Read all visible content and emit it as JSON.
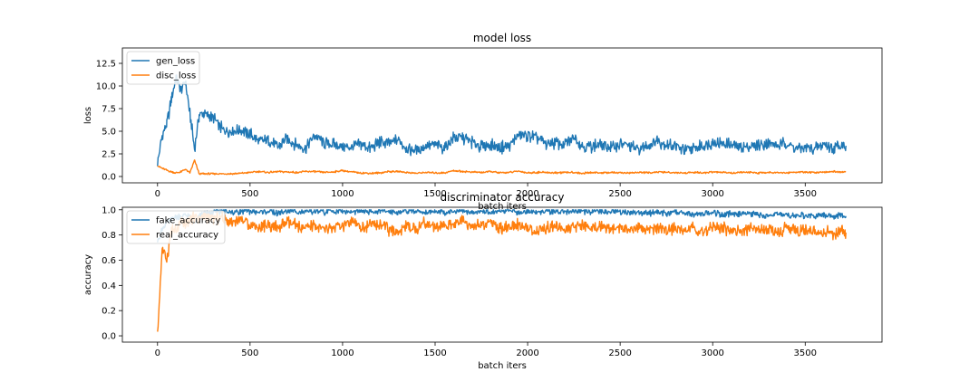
{
  "chart_data": [
    {
      "type": "line",
      "title": "model loss",
      "xlabel": "batch iters",
      "ylabel": "loss",
      "xlim": [
        -190,
        3915
      ],
      "ylim": [
        -0.7,
        14.2
      ],
      "xticks": [
        0,
        500,
        1000,
        1500,
        2000,
        2500,
        3000,
        3500
      ],
      "yticks": [
        0.0,
        2.5,
        5.0,
        7.5,
        10.0,
        12.5
      ],
      "xtick_labels": [
        "0",
        "500",
        "1000",
        "1500",
        "2000",
        "2500",
        "3000",
        "3500"
      ],
      "ytick_labels": [
        "0.0",
        "2.5",
        "5.0",
        "7.5",
        "10.0",
        "12.5"
      ],
      "grid": false,
      "legend_position": "top-left",
      "x": [
        0,
        25,
        50,
        75,
        100,
        125,
        150,
        175,
        200,
        225,
        250,
        300,
        350,
        400,
        450,
        500,
        550,
        600,
        650,
        700,
        750,
        800,
        850,
        900,
        950,
        1000,
        1050,
        1100,
        1150,
        1200,
        1250,
        1300,
        1350,
        1400,
        1450,
        1500,
        1550,
        1600,
        1650,
        1700,
        1750,
        1800,
        1850,
        1900,
        1950,
        2000,
        2050,
        2100,
        2150,
        2200,
        2250,
        2300,
        2350,
        2400,
        2450,
        2500,
        2550,
        2600,
        2650,
        2700,
        2750,
        2800,
        2850,
        2900,
        2950,
        3000,
        3050,
        3100,
        3150,
        3200,
        3250,
        3300,
        3350,
        3400,
        3450,
        3500,
        3550,
        3600,
        3650,
        3700,
        3720
      ],
      "series": [
        {
          "name": "gen_loss",
          "color": "#1f77b4",
          "values": [
            1.4,
            4.5,
            5.8,
            8.5,
            11.0,
            9.5,
            10.5,
            7.0,
            3.0,
            6.8,
            7.0,
            6.5,
            5.2,
            5.0,
            5.1,
            4.7,
            3.8,
            4.0,
            3.2,
            4.2,
            3.5,
            3.1,
            4.6,
            3.7,
            3.5,
            3.3,
            3.2,
            3.6,
            3.1,
            3.8,
            3.6,
            4.1,
            3.0,
            2.9,
            3.4,
            3.5,
            3.2,
            4.3,
            4.3,
            3.8,
            3.4,
            3.5,
            3.2,
            3.3,
            4.6,
            4.5,
            4.3,
            3.6,
            3.7,
            3.5,
            4.4,
            3.3,
            3.4,
            3.5,
            3.2,
            3.6,
            3.4,
            3.0,
            3.4,
            4.0,
            3.5,
            3.4,
            2.9,
            3.1,
            3.4,
            3.8,
            3.6,
            3.5,
            3.2,
            3.3,
            3.5,
            3.7,
            3.4,
            3.7,
            3.1,
            3.2,
            3.0,
            3.6,
            3.1,
            3.5,
            3.4
          ]
        },
        {
          "name": "disc_loss",
          "color": "#ff7f0e",
          "values": [
            1.2,
            0.9,
            0.7,
            0.5,
            0.4,
            0.5,
            0.8,
            0.4,
            1.8,
            0.3,
            0.3,
            0.3,
            0.3,
            0.3,
            0.35,
            0.45,
            0.55,
            0.45,
            0.55,
            0.5,
            0.45,
            0.55,
            0.55,
            0.45,
            0.5,
            0.65,
            0.5,
            0.4,
            0.35,
            0.4,
            0.55,
            0.55,
            0.45,
            0.35,
            0.45,
            0.4,
            0.4,
            0.65,
            0.55,
            0.5,
            0.45,
            0.55,
            0.4,
            0.45,
            0.6,
            0.4,
            0.45,
            0.45,
            0.4,
            0.45,
            0.45,
            0.35,
            0.45,
            0.4,
            0.45,
            0.4,
            0.4,
            0.45,
            0.4,
            0.5,
            0.45,
            0.4,
            0.4,
            0.45,
            0.4,
            0.5,
            0.45,
            0.4,
            0.45,
            0.45,
            0.4,
            0.45,
            0.45,
            0.4,
            0.5,
            0.45,
            0.45,
            0.5,
            0.55,
            0.5,
            0.55
          ]
        }
      ]
    },
    {
      "type": "line",
      "title": "discriminator accuracy",
      "xlabel": "batch iters",
      "ylabel": "accuracy",
      "xlim": [
        -190,
        3915
      ],
      "ylim": [
        -0.05,
        1.02
      ],
      "xticks": [
        0,
        500,
        1000,
        1500,
        2000,
        2500,
        3000,
        3500
      ],
      "yticks": [
        0.0,
        0.2,
        0.4,
        0.6,
        0.8,
        1.0
      ],
      "xtick_labels": [
        "0",
        "500",
        "1000",
        "1500",
        "2000",
        "2500",
        "3000",
        "3500"
      ],
      "ytick_labels": [
        "0.0",
        "0.2",
        "0.4",
        "0.6",
        "0.8",
        "1.0"
      ],
      "grid": false,
      "legend_position": "top-left",
      "x": [
        0,
        25,
        50,
        75,
        100,
        125,
        150,
        175,
        200,
        225,
        250,
        300,
        350,
        400,
        450,
        500,
        550,
        600,
        650,
        700,
        750,
        800,
        850,
        900,
        950,
        1000,
        1050,
        1100,
        1150,
        1200,
        1250,
        1300,
        1350,
        1400,
        1450,
        1500,
        1550,
        1600,
        1650,
        1700,
        1750,
        1800,
        1850,
        1900,
        1950,
        2000,
        2050,
        2100,
        2150,
        2200,
        2250,
        2300,
        2350,
        2400,
        2450,
        2500,
        2550,
        2600,
        2650,
        2700,
        2750,
        2800,
        2850,
        2900,
        2950,
        3000,
        3050,
        3100,
        3150,
        3200,
        3250,
        3300,
        3350,
        3400,
        3450,
        3500,
        3550,
        3600,
        3650,
        3700,
        3720
      ],
      "series": [
        {
          "name": "fake_accuracy",
          "color": "#1f77b4",
          "values": [
            0.75,
            0.85,
            0.9,
            0.92,
            0.95,
            0.93,
            0.96,
            0.94,
            0.9,
            0.96,
            0.97,
            0.98,
            0.99,
            0.98,
            0.99,
            0.99,
            0.98,
            0.99,
            0.97,
            0.99,
            0.99,
            0.98,
            0.99,
            0.98,
            0.99,
            0.99,
            0.98,
            0.99,
            0.98,
            0.99,
            0.99,
            0.98,
            0.99,
            0.99,
            0.98,
            0.99,
            0.98,
            0.99,
            0.99,
            0.98,
            0.99,
            0.98,
            0.99,
            0.99,
            0.98,
            0.99,
            0.98,
            0.99,
            0.99,
            0.98,
            0.99,
            0.98,
            0.99,
            0.99,
            0.98,
            0.99,
            0.97,
            0.98,
            0.97,
            0.98,
            0.97,
            0.98,
            0.97,
            0.96,
            0.97,
            0.98,
            0.96,
            0.97,
            0.96,
            0.97,
            0.96,
            0.95,
            0.97,
            0.96,
            0.95,
            0.96,
            0.95,
            0.96,
            0.95,
            0.96,
            0.95
          ]
        },
        {
          "name": "real_accuracy",
          "color": "#ff7f0e",
          "values": [
            0.0,
            0.7,
            0.6,
            0.85,
            0.82,
            0.9,
            0.88,
            0.92,
            0.95,
            0.93,
            0.95,
            0.93,
            0.94,
            0.9,
            0.93,
            0.88,
            0.86,
            0.88,
            0.85,
            0.9,
            0.87,
            0.85,
            0.88,
            0.84,
            0.86,
            0.87,
            0.9,
            0.86,
            0.88,
            0.9,
            0.84,
            0.82,
            0.88,
            0.85,
            0.9,
            0.86,
            0.88,
            0.87,
            0.92,
            0.86,
            0.88,
            0.9,
            0.85,
            0.87,
            0.88,
            0.86,
            0.82,
            0.86,
            0.88,
            0.85,
            0.86,
            0.88,
            0.85,
            0.87,
            0.85,
            0.86,
            0.84,
            0.85,
            0.83,
            0.86,
            0.84,
            0.85,
            0.83,
            0.86,
            0.82,
            0.85,
            0.86,
            0.84,
            0.82,
            0.85,
            0.83,
            0.84,
            0.82,
            0.86,
            0.83,
            0.84,
            0.82,
            0.83,
            0.81,
            0.84,
            0.82
          ]
        }
      ]
    }
  ]
}
